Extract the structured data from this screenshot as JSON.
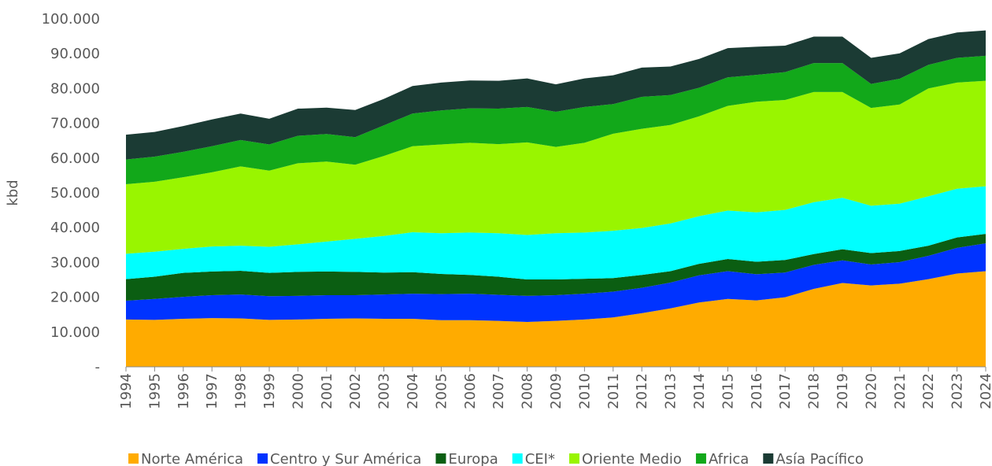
{
  "chart_data": {
    "type": "stacked_area",
    "y_label": "kbd",
    "x": [
      "1994",
      "1995",
      "1996",
      "1997",
      "1998",
      "1999",
      "2000",
      "2001",
      "2002",
      "2003",
      "2004",
      "2005",
      "2006",
      "2007",
      "2008",
      "2009",
      "2010",
      "2011",
      "2012",
      "2013",
      "2014",
      "2015",
      "2016",
      "2017",
      "2018",
      "2019",
      "2020",
      "2021",
      "2022",
      "2023",
      "2024"
    ],
    "ylim": [
      0,
      100000
    ],
    "yticks": [
      {
        "value": 0,
        "label": "-"
      },
      {
        "value": 10000,
        "label": "10.000"
      },
      {
        "value": 20000,
        "label": "20.000"
      },
      {
        "value": 30000,
        "label": "30.000"
      },
      {
        "value": 40000,
        "label": "40.000"
      },
      {
        "value": 50000,
        "label": "50.000"
      },
      {
        "value": 60000,
        "label": "60.000"
      },
      {
        "value": 70000,
        "label": "70.000"
      },
      {
        "value": 80000,
        "label": "80.000"
      },
      {
        "value": 90000,
        "label": "90.000"
      },
      {
        "value": 100000,
        "label": "100.000"
      }
    ],
    "legend": "bottom",
    "series": [
      {
        "name": "Norte América",
        "color": "#ffab00",
        "values": [
          13600,
          13500,
          13800,
          14000,
          13900,
          13500,
          13600,
          13800,
          13900,
          13800,
          13800,
          13400,
          13400,
          13200,
          12900,
          13200,
          13600,
          14200,
          15400,
          16800,
          18500,
          19500,
          19100,
          20000,
          22400,
          24100,
          23400,
          23900,
          25200,
          26800,
          27500
        ]
      },
      {
        "name": "Centro y Sur América",
        "color": "#0033ff",
        "values": [
          5400,
          6000,
          6300,
          6600,
          6900,
          6800,
          6800,
          6800,
          6700,
          7000,
          7200,
          7500,
          7600,
          7500,
          7500,
          7400,
          7400,
          7400,
          7300,
          7400,
          7800,
          8000,
          7500,
          7100,
          6900,
          6500,
          6000,
          6200,
          6700,
          7400,
          8000
        ]
      },
      {
        "name": "Europa",
        "color": "#0b5e12",
        "values": [
          6200,
          6400,
          6900,
          6800,
          6800,
          6700,
          6900,
          6800,
          6700,
          6300,
          6200,
          5800,
          5400,
          5200,
          4700,
          4500,
          4300,
          3900,
          3700,
          3300,
          3300,
          3500,
          3600,
          3600,
          3100,
          3200,
          3300,
          3200,
          2900,
          3000,
          2700
        ]
      },
      {
        "name": "CEI*",
        "color": "#00ffff",
        "values": [
          7300,
          7200,
          6900,
          7200,
          7200,
          7500,
          7900,
          8600,
          9500,
          10500,
          11500,
          11700,
          12200,
          12500,
          12800,
          13300,
          13300,
          13600,
          13500,
          13700,
          13700,
          13900,
          14200,
          14400,
          14900,
          14800,
          13600,
          13600,
          14200,
          14000,
          13700
        ]
      },
      {
        "name": "Oriente Medio",
        "color": "#99f500",
        "values": [
          20000,
          20100,
          20600,
          21300,
          22800,
          21900,
          23300,
          23000,
          21300,
          23000,
          24700,
          25500,
          25800,
          25600,
          26600,
          24800,
          25800,
          27900,
          28500,
          28300,
          28700,
          30100,
          31800,
          31600,
          31700,
          30400,
          28100,
          28500,
          31000,
          30500,
          30300
        ]
      },
      {
        "name": "Africa",
        "color": "#12a81a",
        "values": [
          7100,
          7200,
          7300,
          7500,
          7600,
          7500,
          7900,
          7900,
          7900,
          8800,
          9400,
          9800,
          9900,
          10200,
          10200,
          10100,
          10300,
          8500,
          9200,
          8600,
          8200,
          8200,
          7700,
          8000,
          8300,
          8300,
          6900,
          7400,
          6800,
          7100,
          7200
        ]
      },
      {
        "name": "Asía Pacífico",
        "color": "#1b3b34",
        "values": [
          7100,
          7100,
          7400,
          7700,
          7600,
          7400,
          7800,
          7600,
          7800,
          7600,
          7900,
          8000,
          8000,
          8000,
          8200,
          7900,
          8200,
          8300,
          8400,
          8200,
          8300,
          8400,
          8100,
          7600,
          7600,
          7600,
          7500,
          7300,
          7400,
          7300,
          7300
        ]
      }
    ]
  }
}
